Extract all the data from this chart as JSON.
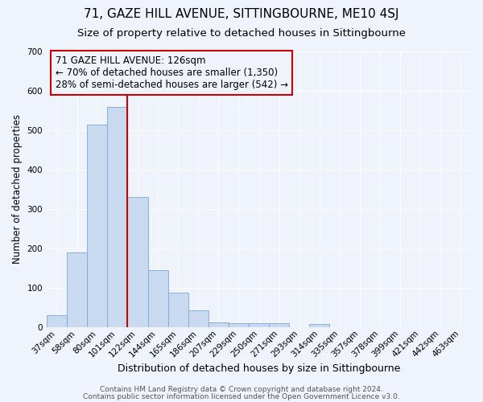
{
  "title": "71, GAZE HILL AVENUE, SITTINGBOURNE, ME10 4SJ",
  "subtitle": "Size of property relative to detached houses in Sittingbourne",
  "xlabel": "Distribution of detached houses by size in Sittingbourne",
  "ylabel": "Number of detached properties",
  "categories": [
    "37sqm",
    "58sqm",
    "80sqm",
    "101sqm",
    "122sqm",
    "144sqm",
    "165sqm",
    "186sqm",
    "207sqm",
    "229sqm",
    "250sqm",
    "271sqm",
    "293sqm",
    "314sqm",
    "335sqm",
    "357sqm",
    "378sqm",
    "399sqm",
    "421sqm",
    "442sqm",
    "463sqm"
  ],
  "bar_heights": [
    30,
    190,
    515,
    560,
    330,
    145,
    87,
    42,
    12,
    10,
    10,
    10,
    0,
    8,
    0,
    0,
    0,
    0,
    0,
    0,
    0
  ],
  "bar_color": "#c8d9f0",
  "bar_edge_color": "#7aa8d8",
  "background_color": "#eef3fc",
  "grid_color": "#ffffff",
  "vline_x_index": 3.5,
  "vline_color": "#cc0000",
  "annotation_text": "71 GAZE HILL AVENUE: 126sqm\n← 70% of detached houses are smaller (1,350)\n28% of semi-detached houses are larger (542) →",
  "annotation_box_color": "#cc0000",
  "annotation_text_color": "#000000",
  "ylim": [
    0,
    700
  ],
  "yticks": [
    0,
    100,
    200,
    300,
    400,
    500,
    600,
    700
  ],
  "footer_line1": "Contains HM Land Registry data © Crown copyright and database right 2024.",
  "footer_line2": "Contains public sector information licensed under the Open Government Licence v3.0.",
  "title_fontsize": 11,
  "subtitle_fontsize": 9.5,
  "xlabel_fontsize": 9,
  "ylabel_fontsize": 8.5,
  "tick_fontsize": 7.5,
  "annotation_fontsize": 8.5,
  "footer_fontsize": 6.5
}
